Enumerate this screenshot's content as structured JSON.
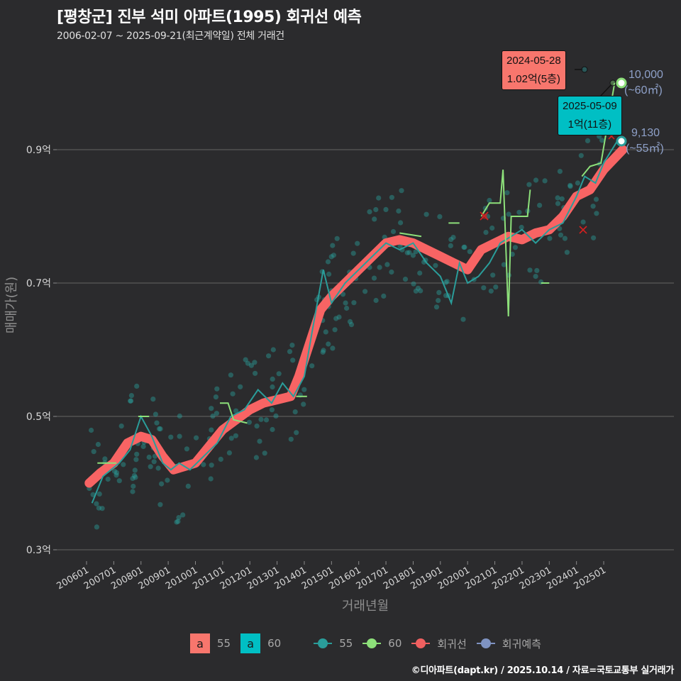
{
  "header": {
    "title": "[평창군] 진부 석미 아파트(1995) 회귀선 예측",
    "subtitle": "2006-02-07 ~ 2025-09-21(최근계약일) 전체 거래건"
  },
  "axes": {
    "x_title": "거래년월",
    "y_title": "매매가(원)",
    "y_ticks": [
      "0.9억",
      "0.7억",
      "0.5억",
      "0.3억"
    ],
    "x_ticks": [
      "200601",
      "200701",
      "200801",
      "200901",
      "201001",
      "201101",
      "201201",
      "201301",
      "201401",
      "201501",
      "201601",
      "201701",
      "201801",
      "201901",
      "202001",
      "202101",
      "202201",
      "202301",
      "202401",
      "202501"
    ]
  },
  "callouts": {
    "max_55": {
      "date": "2024-05-28",
      "value": "1.02억(5층)"
    },
    "max_60": {
      "date": "2025-05-09",
      "value": "1억(11층)"
    }
  },
  "end_labels": {
    "area60": {
      "value": "10,000",
      "area": "(~60㎡)"
    },
    "area55": {
      "value": "9,130",
      "area": "(~55㎡)"
    }
  },
  "legend": {
    "boxes": [
      {
        "glyph": "a",
        "label": "55",
        "color": "#f8766d"
      },
      {
        "glyph": "a",
        "label": "60",
        "color": "#00bfc4"
      }
    ],
    "lines": [
      {
        "label": "55",
        "color": "#2a9d9a"
      },
      {
        "label": "60",
        "color": "#8de07a"
      },
      {
        "label": "회귀선",
        "color": "#f06060"
      },
      {
        "label": "회귀예측",
        "color": "#7f93c2"
      }
    ]
  },
  "footer": "©디아파트(dapt.kr) / 2025.10.14 / 자료=국토교통부 실거래가",
  "colors": {
    "background": "#2b2b2d",
    "grid": "#5a5a5a",
    "series55": "#2a9d9a",
    "series60": "#8de07a",
    "regression": "#f86464",
    "prediction": "#7f93c2",
    "callout55": "#f8766d",
    "callout60": "#00bfc4"
  },
  "chart_data": {
    "type": "line",
    "title": "[평창군] 진부 석미 아파트(1995) 회귀선 예측",
    "subtitle": "2006-02-07 ~ 2025-09-21(최근계약일) 전체 거래건",
    "xlabel": "거래년월",
    "ylabel": "매매가(원)",
    "ylim": [
      0.28,
      1.05
    ],
    "y_unit": "억",
    "grid": true,
    "legend_position": "bottom",
    "series": [
      {
        "name": "회귀선",
        "x": [
          2006.1,
          2006.5,
          2007.0,
          2007.5,
          2008.0,
          2008.4,
          2008.8,
          2009.2,
          2009.6,
          2010.0,
          2010.5,
          2011.0,
          2011.5,
          2012.0,
          2012.5,
          2013.0,
          2013.5,
          2013.8,
          2014.2,
          2014.6,
          2015.0,
          2015.5,
          2016.0,
          2016.5,
          2017.0,
          2017.5,
          2018.0,
          2018.5,
          2019.0,
          2019.5,
          2020.0,
          2020.5,
          2021.0,
          2021.5,
          2022.0,
          2022.5,
          2023.0,
          2023.5,
          2024.0,
          2024.5,
          2025.0,
          2025.7
        ],
        "values": [
          0.4,
          0.415,
          0.43,
          0.46,
          0.47,
          0.465,
          0.44,
          0.42,
          0.425,
          0.43,
          0.455,
          0.48,
          0.495,
          0.51,
          0.52,
          0.525,
          0.53,
          0.56,
          0.61,
          0.66,
          0.68,
          0.7,
          0.72,
          0.74,
          0.76,
          0.765,
          0.76,
          0.75,
          0.74,
          0.73,
          0.72,
          0.75,
          0.76,
          0.77,
          0.765,
          0.775,
          0.78,
          0.8,
          0.83,
          0.84,
          0.87,
          0.9
        ]
      },
      {
        "name": "55",
        "x": [
          2006.2,
          2006.6,
          2007.2,
          2007.6,
          2008.0,
          2008.4,
          2008.8,
          2009.1,
          2009.4,
          2009.8,
          2010.3,
          2010.8,
          2011.3,
          2011.8,
          2012.3,
          2012.8,
          2013.2,
          2013.6,
          2014.0,
          2014.3,
          2014.7,
          2015.0,
          2015.5,
          2016.0,
          2016.5,
          2017.0,
          2017.5,
          2018.0,
          2018.5,
          2019.0,
          2019.4,
          2019.7,
          2020.0,
          2020.4,
          2020.8,
          2021.2,
          2021.6,
          2022.0,
          2022.5,
          2023.0,
          2023.5,
          2024.0,
          2024.3,
          2024.7,
          2025.0,
          2025.5
        ],
        "values": [
          0.37,
          0.41,
          0.43,
          0.45,
          0.5,
          0.47,
          0.43,
          0.42,
          0.43,
          0.42,
          0.44,
          0.46,
          0.5,
          0.51,
          0.54,
          0.52,
          0.55,
          0.53,
          0.56,
          0.63,
          0.72,
          0.67,
          0.7,
          0.72,
          0.74,
          0.76,
          0.75,
          0.76,
          0.73,
          0.71,
          0.67,
          0.73,
          0.7,
          0.71,
          0.73,
          0.76,
          0.77,
          0.78,
          0.76,
          0.78,
          0.79,
          0.83,
          0.86,
          0.85,
          0.88,
          0.913
        ]
      },
      {
        "name": "60",
        "segments": [
          {
            "x": [
              2006.4,
              2007.1
            ],
            "values": [
              0.43,
              0.43
            ]
          },
          {
            "x": [
              2007.9,
              2008.3
            ],
            "values": [
              0.5,
              0.5
            ]
          },
          {
            "x": [
              2010.9,
              2011.2,
              2011.4,
              2011.9
            ],
            "values": [
              0.52,
              0.52,
              0.495,
              0.49
            ]
          },
          {
            "x": [
              2013.7,
              2014.1
            ],
            "values": [
              0.53,
              0.53
            ]
          },
          {
            "x": [
              2017.5,
              2018.3
            ],
            "values": [
              0.775,
              0.77
            ]
          },
          {
            "x": [
              2019.3,
              2019.7
            ],
            "values": [
              0.79,
              0.79
            ]
          },
          {
            "x": [
              2020.5,
              2020.8,
              2021.2,
              2021.3,
              2021.5,
              2021.6,
              2022.2,
              2022.3
            ],
            "values": [
              0.8,
              0.82,
              0.82,
              0.87,
              0.65,
              0.8,
              0.8,
              0.84
            ]
          },
          {
            "x": [
              2022.7,
              2023.0
            ],
            "values": [
              0.7,
              0.7
            ]
          },
          {
            "x": [
              2024.2,
              2024.5,
              2024.9,
              2025.4
            ],
            "values": [
              0.86,
              0.875,
              0.88,
              1.0
            ]
          }
        ]
      },
      {
        "name": "회귀예측",
        "points": [
          {
            "x": 2025.7,
            "value": 0.913,
            "label": "9,130 (~55㎡)"
          },
          {
            "x": 2025.6,
            "value": 1.0,
            "label": "10,000 (~60㎡)"
          }
        ]
      }
    ],
    "annotations": [
      {
        "text": "2024-05-28 1.02억(5층)",
        "x": 2024.4,
        "y": 1.02,
        "series": "55"
      },
      {
        "text": "2025-05-09 1억(11층)",
        "x": 2025.35,
        "y": 0.99,
        "series": "60"
      }
    ]
  }
}
